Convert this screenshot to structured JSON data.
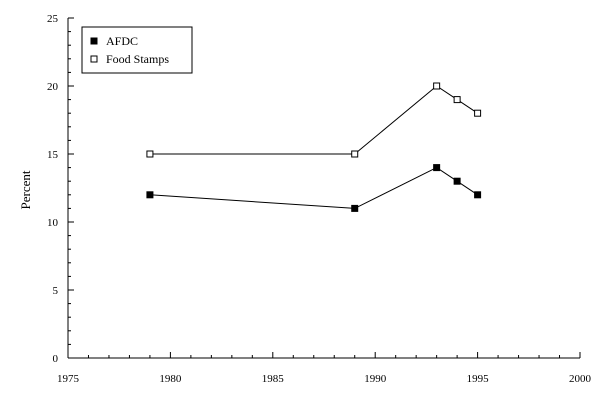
{
  "chart_data": {
    "type": "line",
    "title": "",
    "xlabel": "",
    "ylabel": "Percent",
    "xlim": [
      1975,
      2000
    ],
    "ylim": [
      0,
      25
    ],
    "x_ticks": [
      1975,
      1980,
      1985,
      1990,
      1995,
      2000
    ],
    "y_ticks": [
      0,
      5,
      10,
      15,
      20,
      25
    ],
    "grid": false,
    "legend_position": "top-left",
    "series": [
      {
        "name": "AFDC",
        "marker": "filled-square",
        "color": "#000000",
        "points": [
          {
            "x": 1979,
            "y": 12
          },
          {
            "x": 1989,
            "y": 11
          },
          {
            "x": 1993,
            "y": 14
          },
          {
            "x": 1994,
            "y": 13
          },
          {
            "x": 1995,
            "y": 12
          }
        ]
      },
      {
        "name": "Food Stamps",
        "marker": "open-square",
        "color": "#000000",
        "points": [
          {
            "x": 1979,
            "y": 15
          },
          {
            "x": 1989,
            "y": 15
          },
          {
            "x": 1993,
            "y": 20
          },
          {
            "x": 1994,
            "y": 19
          },
          {
            "x": 1995,
            "y": 18
          }
        ]
      }
    ]
  }
}
